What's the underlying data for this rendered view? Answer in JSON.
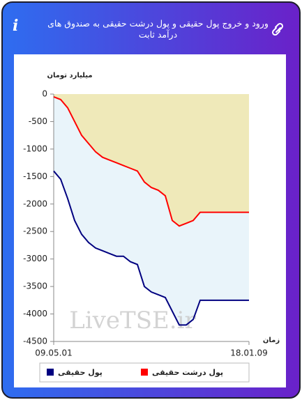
{
  "chart_data": {
    "type": "line",
    "title": "ورود و خروج پول حقیقی و پول درشت حقیقی به صندوق های درآمد ثابت",
    "y_label": "میلیارد تومان",
    "x_label": "زمان",
    "watermark": "LiveTSE.ir",
    "categories": [
      "09.05.01",
      null,
      null,
      null,
      null,
      null,
      null,
      null,
      null,
      null,
      null,
      null,
      null,
      null,
      null,
      null,
      null,
      null,
      null,
      null,
      null,
      null,
      null,
      null,
      null,
      null,
      null,
      null,
      "18.01.09"
    ],
    "series": [
      {
        "name": "پول حقیقی",
        "color": "#000080",
        "fill": "#e9f4fa",
        "values": [
          -1400,
          -1550,
          -1900,
          -2300,
          -2550,
          -2700,
          -2800,
          -2850,
          -2900,
          -2950,
          -2950,
          -3050,
          -3100,
          -3500,
          -3600,
          -3650,
          -3700,
          -3950,
          -4200,
          -4200,
          -4100,
          -3750,
          -3750,
          -3750,
          -3750,
          -3750,
          -3750,
          -3750,
          -3750
        ]
      },
      {
        "name": "پول درشت حقیقی",
        "color": "#ff0000",
        "fill": "#efe9b9",
        "values": [
          -50,
          -100,
          -250,
          -500,
          -750,
          -900,
          -1050,
          -1150,
          -1200,
          -1250,
          -1300,
          -1350,
          -1400,
          -1600,
          -1700,
          -1750,
          -1850,
          -2300,
          -2400,
          -2350,
          -2300,
          -2150,
          -2150,
          -2150,
          -2150,
          -2150,
          -2150,
          -2150,
          -2150
        ]
      }
    ],
    "ylim": [
      -4500,
      0
    ],
    "yticks": [
      0,
      -500,
      -1000,
      -1500,
      -2000,
      -2500,
      -3000,
      -3500,
      -4000,
      -4500
    ]
  }
}
